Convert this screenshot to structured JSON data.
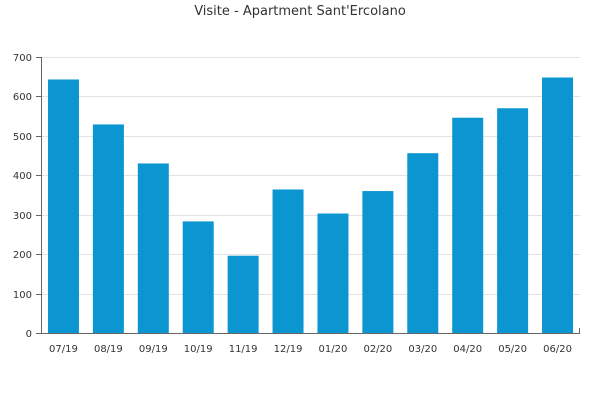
{
  "chart_data": {
    "type": "bar",
    "title": "Visite - Apartment Sant'Ercolano",
    "xlabel": "",
    "ylabel": "",
    "categories": [
      "07/19",
      "08/19",
      "09/19",
      "10/19",
      "11/19",
      "12/19",
      "01/20",
      "02/20",
      "03/20",
      "04/20",
      "05/20",
      "06/20"
    ],
    "values": [
      643,
      529,
      430,
      283,
      196,
      364,
      303,
      360,
      456,
      546,
      570,
      648
    ],
    "ylim": [
      0,
      700
    ],
    "yticks": [
      0,
      100,
      200,
      300,
      400,
      500,
      600,
      700
    ],
    "grid": true,
    "legend": "none",
    "colors": {
      "bar": "#0b95d1",
      "grid": "#e2e2e2",
      "axis": "#666666",
      "text": "#333333"
    }
  }
}
